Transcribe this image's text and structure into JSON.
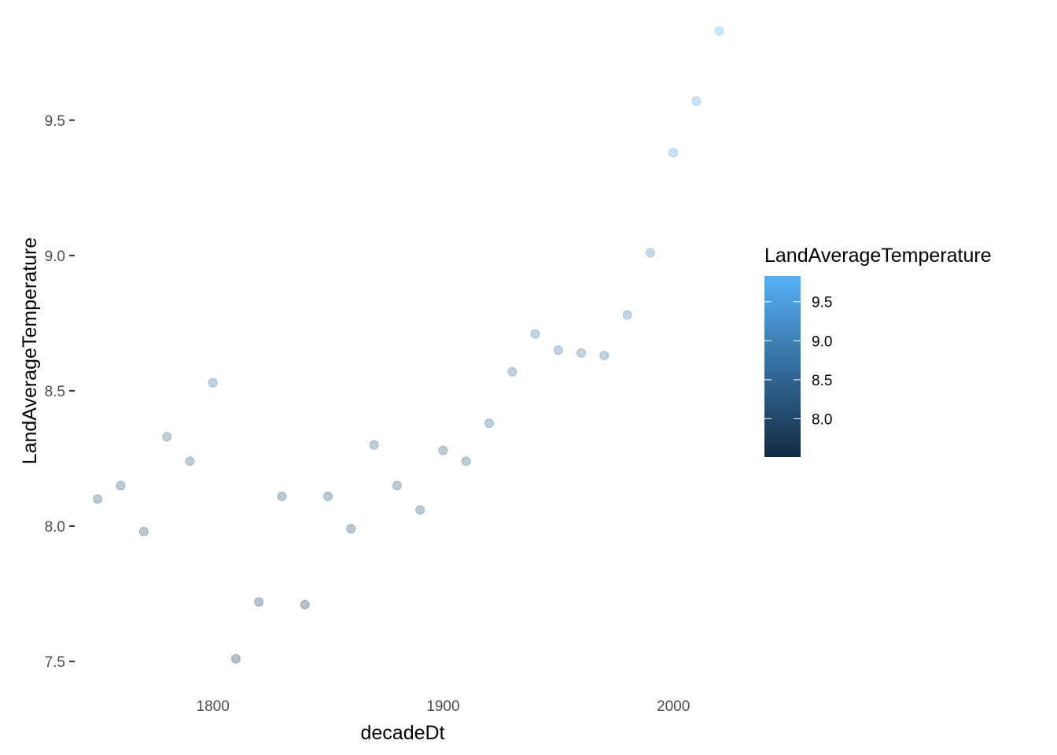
{
  "chart_data": {
    "type": "scatter",
    "xlabel": "decadeDt",
    "ylabel": "LandAverageTemperature",
    "xlim": [
      1740,
      2030
    ],
    "ylim": [
      7.41,
      9.88
    ],
    "x_ticks": [
      1800,
      1900,
      2000
    ],
    "x_tick_labels": [
      "1800",
      "1900",
      "2000"
    ],
    "y_ticks": [
      7.5,
      8.0,
      8.5,
      9.0,
      9.5
    ],
    "y_tick_labels": [
      "7.5",
      "8.0",
      "8.5",
      "9.0",
      "9.5"
    ],
    "grid": false,
    "point_opacity": 0.3,
    "points": [
      {
        "x": 1750,
        "y": 8.1
      },
      {
        "x": 1760,
        "y": 8.15
      },
      {
        "x": 1770,
        "y": 7.98
      },
      {
        "x": 1780,
        "y": 8.33
      },
      {
        "x": 1790,
        "y": 8.24
      },
      {
        "x": 1800,
        "y": 8.53
      },
      {
        "x": 1810,
        "y": 7.51
      },
      {
        "x": 1820,
        "y": 7.72
      },
      {
        "x": 1830,
        "y": 8.11
      },
      {
        "x": 1840,
        "y": 7.71
      },
      {
        "x": 1850,
        "y": 8.11
      },
      {
        "x": 1860,
        "y": 7.99
      },
      {
        "x": 1870,
        "y": 8.3
      },
      {
        "x": 1880,
        "y": 8.15
      },
      {
        "x": 1890,
        "y": 8.06
      },
      {
        "x": 1900,
        "y": 8.28
      },
      {
        "x": 1910,
        "y": 8.24
      },
      {
        "x": 1920,
        "y": 8.38
      },
      {
        "x": 1930,
        "y": 8.57
      },
      {
        "x": 1940,
        "y": 8.71
      },
      {
        "x": 1950,
        "y": 8.65
      },
      {
        "x": 1960,
        "y": 8.64
      },
      {
        "x": 1970,
        "y": 8.63
      },
      {
        "x": 1980,
        "y": 8.78
      },
      {
        "x": 1990,
        "y": 9.01
      },
      {
        "x": 2000,
        "y": 9.38
      },
      {
        "x": 2010,
        "y": 9.57
      },
      {
        "x": 2020,
        "y": 9.83
      }
    ],
    "legend": {
      "title": "LandAverageTemperature",
      "placement": "right",
      "range": [
        7.51,
        9.83
      ],
      "breaks": [
        8.0,
        8.5,
        9.0,
        9.5
      ],
      "break_labels": [
        "8.0",
        "8.5",
        "9.0",
        "9.5"
      ],
      "color_low": "#132B43",
      "color_high": "#56B1F7"
    }
  }
}
